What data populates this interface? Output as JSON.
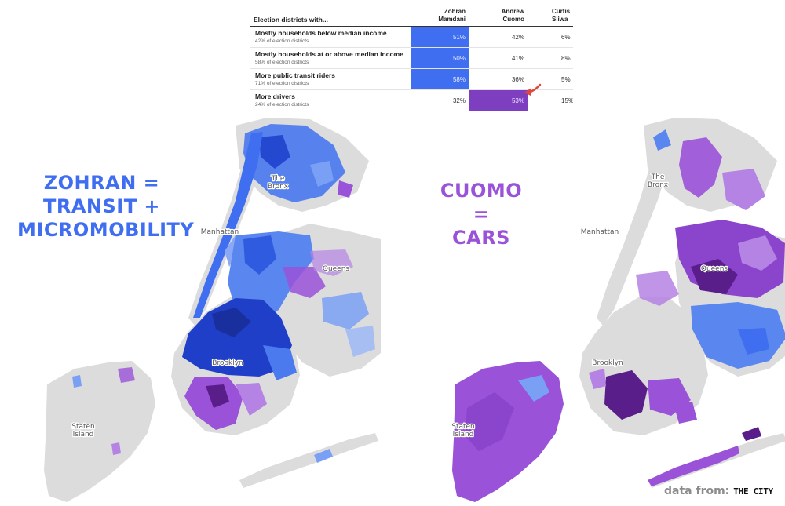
{
  "table": {
    "header": "Election districts with...",
    "candidates": [
      {
        "first": "Zohran",
        "last": "Mamdani"
      },
      {
        "first": "Andrew",
        "last": "Cuomo"
      },
      {
        "first": "Curtis",
        "last": "Sliwa"
      }
    ],
    "rows": [
      {
        "label": "Mostly households below median income",
        "sub": "42% of election districts",
        "values": [
          "51%",
          "42%",
          "6%"
        ],
        "highlight": "Zohran Mamdani"
      },
      {
        "label": "Mostly households at or above median income",
        "sub": "58% of election districts",
        "values": [
          "50%",
          "41%",
          "8%"
        ],
        "highlight": "Zohran Mamdani"
      },
      {
        "label": "More public transit riders",
        "sub": "71% of election districts",
        "values": [
          "58%",
          "36%",
          "5%"
        ],
        "highlight": "Zohran Mamdani"
      },
      {
        "label": "More drivers",
        "sub": "24% of election districts",
        "values": [
          "32%",
          "53%",
          "15%"
        ],
        "highlight": "Andrew Cuomo"
      }
    ],
    "highlight_colors": {
      "Zohran Mamdani": "#3f6ef0",
      "Andrew Cuomo": "#7d3fbf"
    },
    "arrow_color": "#e0463c"
  },
  "headlines": {
    "left": [
      "ZOHRAN =",
      "TRANSIT +",
      "MICROMOBILITY"
    ],
    "right": [
      "CUOMO =",
      "CARS"
    ]
  },
  "colors": {
    "zohran": "#3f6ef0",
    "zohran_dark": "#1f3fc8",
    "zohran_light": "#7aa0f5",
    "cuomo": "#9a52d8",
    "cuomo_dark": "#5a1e8a",
    "land": "#dcdcdc",
    "water": "#ffffff"
  },
  "maps": {
    "left": {
      "labels": {
        "bronx": "The Bronx",
        "manhattan": "Manhattan",
        "queens": "Queens",
        "brooklyn": "Brooklyn",
        "staten_island": "Staten Island"
      }
    },
    "right": {
      "labels": {
        "bronx": "The Bronx",
        "manhattan": "Manhattan",
        "queens": "Queens",
        "brooklyn": "Brooklyn",
        "staten_island": "Staten Island"
      }
    }
  },
  "credit": {
    "prefix": "data from:",
    "source": "THE CITY"
  }
}
